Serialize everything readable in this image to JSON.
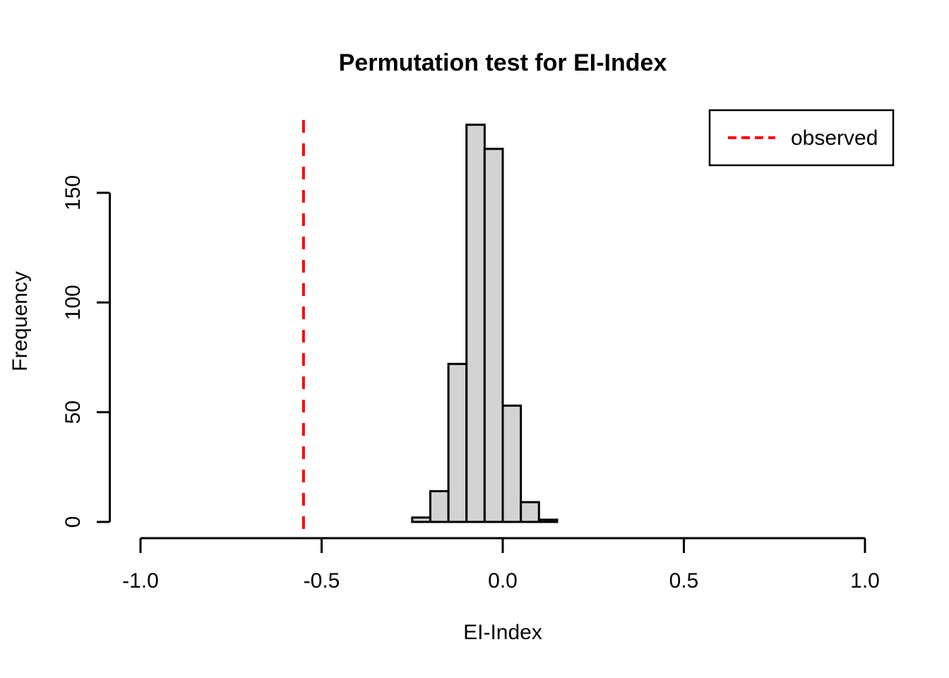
{
  "figure": {
    "title": "Permutation test for EI-Index",
    "xlabel": "EI-Index",
    "ylabel": "Frequency"
  },
  "chart_data": {
    "type": "bar",
    "subtype": "histogram",
    "title": "Permutation test for EI-Index",
    "xlabel": "EI-Index",
    "ylabel": "Frequency",
    "xlim": [
      -1.0,
      1.0
    ],
    "ylim": [
      0,
      180
    ],
    "grid": false,
    "x_ticks": {
      "values": [
        -1.0,
        -0.5,
        0.0,
        0.5,
        1.0
      ],
      "labels": [
        "-1.0",
        "-0.5",
        "0.0",
        "0.5",
        "1.0"
      ]
    },
    "y_ticks": {
      "values": [
        0,
        50,
        100,
        150
      ],
      "labels": [
        "0",
        "50",
        "100",
        "150"
      ]
    },
    "bins": {
      "start": -0.25,
      "width": 0.05,
      "edges": [
        -0.25,
        -0.2,
        -0.15,
        -0.1,
        -0.05,
        0.0,
        0.05,
        0.1,
        0.15
      ]
    },
    "counts": [
      2,
      14,
      72,
      181,
      170,
      53,
      9,
      1
    ],
    "observed_line": {
      "x": -0.55,
      "color": "#FF0000",
      "style": "dashed",
      "label": "observed"
    },
    "colors": {
      "bar_fill": "#D3D3D3",
      "bar_border": "#000000",
      "axis": "#000000",
      "background": "#FFFFFF"
    },
    "legend": {
      "position": "top-right",
      "entries": [
        {
          "label": "observed",
          "color": "#FF0000",
          "line_style": "dashed"
        }
      ]
    }
  }
}
